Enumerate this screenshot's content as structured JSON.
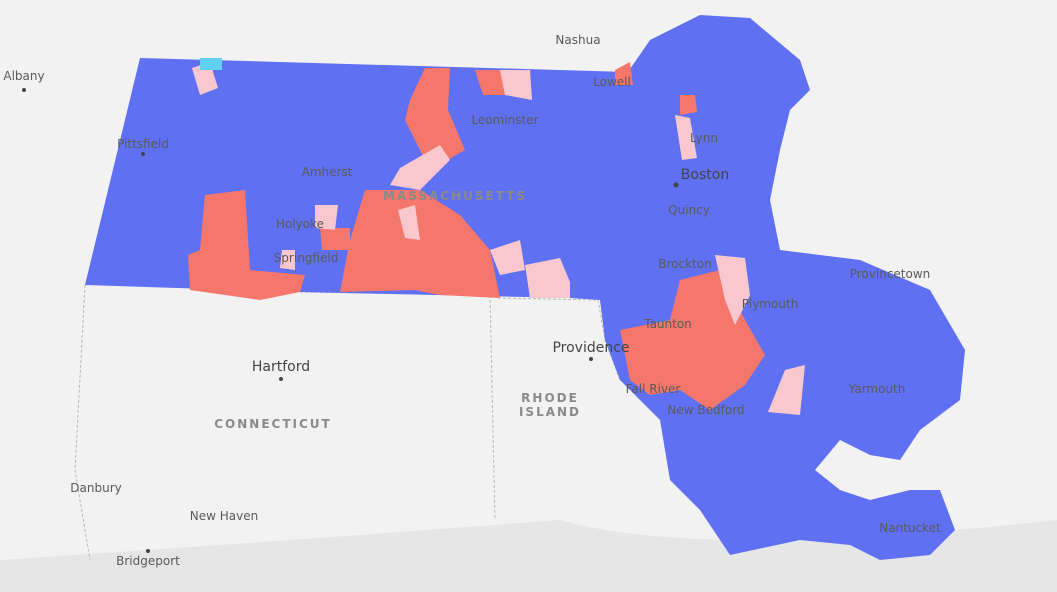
{
  "map": {
    "states": [
      "MASSACHUSETTS",
      "CONNECTICUT",
      "RHODE",
      "ISLAND"
    ],
    "cities": [
      "Nashua",
      "Albany",
      "Pittsfield",
      "Leominster",
      "Lowell",
      "Lynn",
      "Boston",
      "Amherst",
      "Quincy",
      "Holyoke",
      "Springfield",
      "Brockton",
      "Provincetown",
      "Plymouth",
      "Taunton",
      "Hartford",
      "Providence",
      "Fall River",
      "New Bedford",
      "Yarmouth",
      "Danbury",
      "New Haven",
      "Bridgeport",
      "Nantucket"
    ]
  }
}
